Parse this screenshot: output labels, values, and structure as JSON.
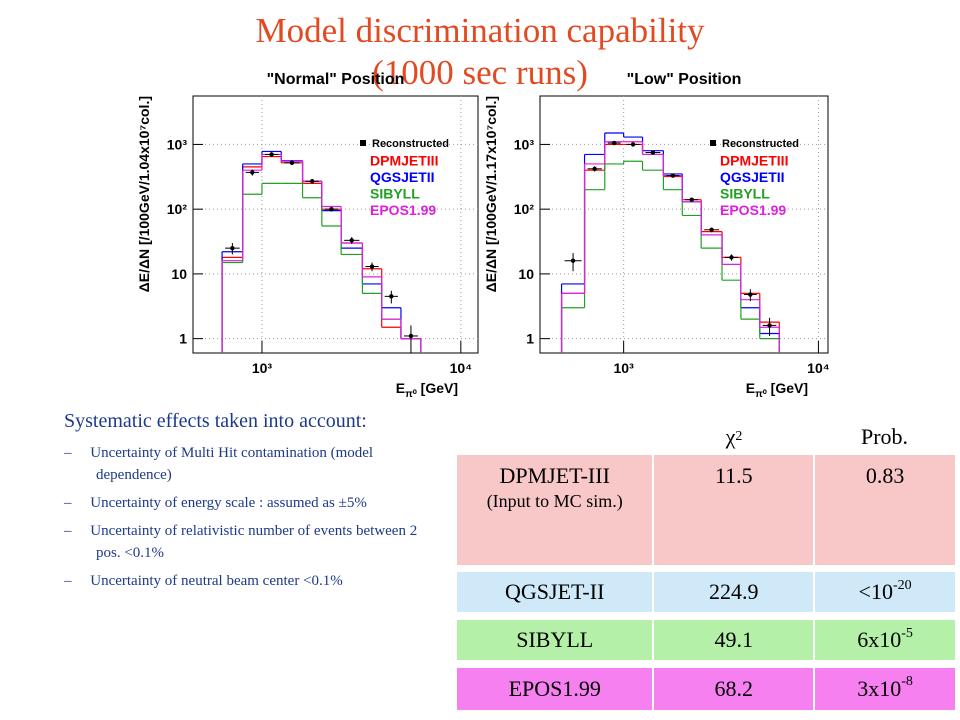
{
  "title_line1": "Model discrimination capability",
  "title_line2": "(1000 sec runs)",
  "charts": [
    {
      "type": "histogram",
      "title": "\"Normal\" Position",
      "y_label": "ΔE/ΔN [/100GeV/1.04x10⁷col.]",
      "x_label": "E",
      "x_label_sub": "π⁰",
      "x_label_unit": " [GeV]",
      "log_x": true,
      "log_y": true,
      "grid": true,
      "legend": "upper right",
      "xlim": [
        450,
        12200
      ],
      "xticks": [
        {
          "value": 1000,
          "label": "10³"
        },
        {
          "value": 10000,
          "label": "10⁴"
        }
      ],
      "ylim": [
        0.6,
        5600
      ],
      "yticks": [
        1,
        10,
        {
          "value": 100,
          "label": "10²"
        },
        {
          "value": 1000,
          "label": "10³"
        }
      ],
      "bins": [
        630,
        800,
        1000,
        1250,
        1600,
        2000,
        2500,
        3200,
        4000,
        5000,
        6300
      ],
      "series": [
        {
          "name": "Reconstructed",
          "color": "#000000",
          "kind": "points",
          "values": [
            25,
            370,
            700,
            520,
            270,
            100,
            33,
            13,
            4.5,
            1.1
          ],
          "errors": [
            5,
            40,
            60,
            40,
            20,
            8,
            4,
            2,
            1,
            0.5
          ]
        },
        {
          "name": "DPMJETIII",
          "color": "#ff0000",
          "kind": "step",
          "values": [
            18,
            450,
            650,
            520,
            250,
            100,
            30,
            12,
            1.5,
            1
          ]
        },
        {
          "name": "QGSJETII",
          "color": "#0000ff",
          "kind": "step",
          "values": [
            22,
            500,
            780,
            560,
            270,
            95,
            25,
            7,
            3,
            1
          ]
        },
        {
          "name": "SIBYLL",
          "color": "#22a022",
          "kind": "step",
          "values": [
            15,
            170,
            250,
            250,
            150,
            55,
            20,
            5,
            2,
            1
          ]
        },
        {
          "name": "EPOS1.99",
          "color": "#e020e0",
          "kind": "step",
          "values": [
            16,
            400,
            700,
            550,
            270,
            110,
            30,
            9,
            2,
            1
          ]
        }
      ]
    },
    {
      "type": "histogram",
      "title": "\"Low\" Position",
      "y_label": "ΔE/ΔN [/100GeV/1.17x10⁷col.]",
      "x_label": "E",
      "x_label_sub": "π⁰",
      "x_label_unit": " [GeV]",
      "log_x": true,
      "log_y": true,
      "grid": true,
      "legend": "upper right",
      "xlim": [
        372,
        11200
      ],
      "xticks": [
        {
          "value": 1000,
          "label": "10³"
        },
        {
          "value": 10000,
          "label": "10⁴"
        }
      ],
      "ylim": [
        0.6,
        5600
      ],
      "yticks": [
        1,
        10,
        {
          "value": 100,
          "label": "10²"
        },
        {
          "value": 1000,
          "label": "10³"
        }
      ],
      "bins": [
        480,
        630,
        800,
        1000,
        1250,
        1600,
        2000,
        2500,
        3200,
        4000,
        5000,
        6300
      ],
      "series": [
        {
          "name": "Reconstructed",
          "color": "#000000",
          "kind": "points",
          "values": [
            16,
            420,
            1050,
            1000,
            750,
            330,
            140,
            48,
            18,
            4.8,
            1.6
          ],
          "errors": [
            5,
            40,
            60,
            60,
            40,
            15,
            8,
            4,
            2,
            1,
            0.5
          ]
        },
        {
          "name": "DPMJETIII",
          "color": "#ff0000",
          "kind": "step",
          "values": [
            5,
            400,
            1000,
            1000,
            700,
            320,
            140,
            45,
            18,
            5,
            1.8
          ]
        },
        {
          "name": "QGSJETII",
          "color": "#0000ff",
          "kind": "step",
          "values": [
            7,
            700,
            1500,
            1300,
            800,
            350,
            130,
            40,
            14,
            3,
            1.2
          ]
        },
        {
          "name": "SIBYLL",
          "color": "#22a022",
          "kind": "step",
          "values": [
            3,
            200,
            500,
            550,
            400,
            200,
            80,
            25,
            8,
            2,
            1
          ]
        },
        {
          "name": "EPOS1.99",
          "color": "#e020e0",
          "kind": "step",
          "values": [
            5,
            500,
            1100,
            1100,
            700,
            330,
            130,
            40,
            14,
            4,
            1.5
          ]
        }
      ]
    }
  ],
  "systematics": {
    "heading": "Systematic effects taken into account:",
    "items": [
      "Uncertainty of Multi Hit contamination (model dependence)",
      "Uncertainty of energy scale : assumed as ±5%",
      "Uncertainty of relativistic number of events between 2 pos. <0.1%",
      "Uncertainty of neutral beam center <0.1%"
    ]
  },
  "table": {
    "header_chi": "χ",
    "header_chi_sup": "2",
    "header_prob": "Prob.",
    "rows": [
      {
        "model": "DPMJET-III",
        "note": "(Input to MC sim.)",
        "chi2": "11.5",
        "prob": "0.83",
        "prob_exp": null,
        "color": "#f8c8c8"
      },
      {
        "model": "QGSJET-II",
        "note": null,
        "chi2": "224.9",
        "prob": "<10",
        "prob_exp": "-20",
        "color": "#cfe9f8"
      },
      {
        "model": "SIBYLL",
        "note": null,
        "chi2": "49.1",
        "prob": "6x10",
        "prob_exp": "-5",
        "color": "#b5f0a8"
      },
      {
        "model": "EPOS1.99",
        "note": null,
        "chi2": "68.2",
        "prob": "3x10",
        "prob_exp": "-8",
        "color": "#f680f0"
      }
    ]
  }
}
